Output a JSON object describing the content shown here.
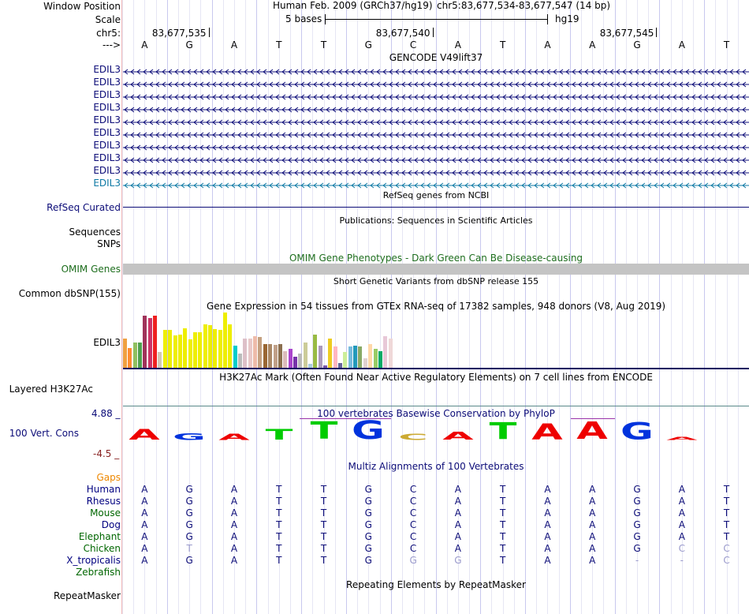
{
  "header": {
    "window_position_label": "Window Position",
    "assembly": "Human Feb. 2009 (GRCh37/hg19)",
    "position": "chr5:83,677,534-83,677,547 (14 bp)",
    "scale_label": "Scale",
    "scale_text": "5 bases",
    "scale_db": "hg19",
    "chrom_label": "chr5:",
    "strand_label": "--->",
    "ruler_ticks": [
      "83,677,535",
      "83,677,540",
      "83,677,545"
    ]
  },
  "sequence": [
    "A",
    "G",
    "A",
    "T",
    "T",
    "G",
    "C",
    "A",
    "T",
    "A",
    "A",
    "G",
    "A",
    "T"
  ],
  "gencode": {
    "title": "GENCODE V49lift37",
    "genes": [
      "EDIL3",
      "EDIL3",
      "EDIL3",
      "EDIL3",
      "EDIL3",
      "EDIL3",
      "EDIL3",
      "EDIL3",
      "EDIL3",
      "EDIL3"
    ],
    "gene_color": "#0c0c78",
    "last_gene_color": "#0f7aa5"
  },
  "refseq": {
    "title": "RefSeq genes from NCBI",
    "label": "RefSeq Curated"
  },
  "publications": {
    "title": "Publications: Sequences in Scientific Articles",
    "labels": [
      "Sequences",
      "SNPs"
    ]
  },
  "omim": {
    "title": "OMIM Gene Phenotypes - Dark Green Can Be Disease-causing",
    "label": "OMIM Genes",
    "color": "#1e6e1e"
  },
  "dbsnp": {
    "title": "Short Genetic Variants from dbSNP release 155",
    "label": "Common dbSNP(155)"
  },
  "gtex": {
    "title": "Gene Expression in 54 tissues from GTEx RNA-seq of 17382 samples, 948 donors (V8, Aug 2019)",
    "label": "EDIL3",
    "bars": [
      {
        "v": 0.53,
        "c": "#f0a040"
      },
      {
        "v": 0.35,
        "c": "#ff8c30"
      },
      {
        "v": 0.45,
        "c": "#90c060"
      },
      {
        "v": 0.45,
        "c": "#50a050"
      },
      {
        "v": 0.94,
        "c": "#a0325a"
      },
      {
        "v": 0.9,
        "c": "#cc3366"
      },
      {
        "v": 0.94,
        "c": "#ee2020"
      },
      {
        "v": 0.28,
        "c": "#d2c8b4"
      },
      {
        "v": 0.68,
        "c": "#eeee00"
      },
      {
        "v": 0.68,
        "c": "#eeee00"
      },
      {
        "v": 0.58,
        "c": "#eeee00"
      },
      {
        "v": 0.6,
        "c": "#eeee00"
      },
      {
        "v": 0.72,
        "c": "#eeee00"
      },
      {
        "v": 0.51,
        "c": "#eeee00"
      },
      {
        "v": 0.64,
        "c": "#eeee00"
      },
      {
        "v": 0.64,
        "c": "#eeee00"
      },
      {
        "v": 0.79,
        "c": "#eeee00"
      },
      {
        "v": 0.77,
        "c": "#eeee00"
      },
      {
        "v": 0.7,
        "c": "#eeee00"
      },
      {
        "v": 0.68,
        "c": "#eeee00"
      },
      {
        "v": 1.0,
        "c": "#eeee00"
      },
      {
        "v": 0.79,
        "c": "#eeee00"
      },
      {
        "v": 0.4,
        "c": "#00cccc"
      },
      {
        "v": 0.26,
        "c": "#bbbbbb"
      },
      {
        "v": 0.53,
        "c": "#ddc0c8"
      },
      {
        "v": 0.53,
        "c": "#e8c8c8"
      },
      {
        "v": 0.57,
        "c": "#eebbaa"
      },
      {
        "v": 0.55,
        "c": "#c4a080"
      },
      {
        "v": 0.43,
        "c": "#996633"
      },
      {
        "v": 0.43,
        "c": "#aa8866"
      },
      {
        "v": 0.41,
        "c": "#c0a088"
      },
      {
        "v": 0.43,
        "c": "#8b6f4e"
      },
      {
        "v": 0.3,
        "c": "#dbbbbb"
      },
      {
        "v": 0.34,
        "c": "#aa44cc"
      },
      {
        "v": 0.2,
        "c": "#7733aa"
      },
      {
        "v": 0.26,
        "c": "#bbbbbb"
      },
      {
        "v": 0.45,
        "c": "#cccc99"
      },
      {
        "v": 0.07,
        "c": "#aaccdd"
      },
      {
        "v": 0.6,
        "c": "#99bb44"
      },
      {
        "v": 0.4,
        "c": "#aa99bb"
      },
      {
        "v": 0.04,
        "c": "#7755aa"
      },
      {
        "v": 0.53,
        "c": "#eecc22"
      },
      {
        "v": 0.38,
        "c": "#ffb6c1"
      },
      {
        "v": 0.09,
        "c": "#666699"
      },
      {
        "v": 0.28,
        "c": "#ccee99"
      },
      {
        "v": 0.38,
        "c": "#77bbdd"
      },
      {
        "v": 0.4,
        "c": "#2299bb"
      },
      {
        "v": 0.38,
        "c": "#88aa66"
      },
      {
        "v": 0.17,
        "c": "#e0d0d0"
      },
      {
        "v": 0.43,
        "c": "#ffd8a8"
      },
      {
        "v": 0.34,
        "c": "#99cc66"
      },
      {
        "v": 0.3,
        "c": "#00aa66"
      },
      {
        "v": 0.57,
        "c": "#e8c8d8"
      },
      {
        "v": 0.53,
        "c": "#efd8d8"
      }
    ]
  },
  "h3k27ac": {
    "title": "H3K27Ac Mark (Often Found Near Active Regulatory Elements) on 7 cell lines from ENCODE",
    "label": "Layered H3K27Ac"
  },
  "phylop": {
    "title": "100 vertebrates Basewise Conservation by PhyloP",
    "label": "100 Vert. Cons",
    "max": "4.88 _",
    "min": "-4.5 _",
    "scores": [
      0.55,
      0.35,
      0.3,
      0.55,
      0.9,
      0.95,
      0.3,
      0.4,
      0.85,
      0.8,
      0.9,
      0.85,
      0.15,
      0.0
    ],
    "colors": {
      "A": "#ee0000",
      "G": "#0033dd",
      "T": "#00cc00",
      "C": "#ccaa33"
    }
  },
  "multiz": {
    "title": "Multiz Alignments of 100 Vertebrates",
    "gaps_label": "Gaps",
    "gaps_color": "#ee8800",
    "species": [
      {
        "name": "Human",
        "color": "#000080",
        "seq": [
          "A",
          "G",
          "A",
          "T",
          "T",
          "G",
          "C",
          "A",
          "T",
          "A",
          "A",
          "G",
          "A",
          "T"
        ],
        "dim": []
      },
      {
        "name": "Rhesus",
        "color": "#000080",
        "seq": [
          "A",
          "G",
          "A",
          "T",
          "T",
          "G",
          "C",
          "A",
          "T",
          "A",
          "A",
          "G",
          "A",
          "T"
        ],
        "dim": []
      },
      {
        "name": "Mouse",
        "color": "#006600",
        "seq": [
          "A",
          "G",
          "A",
          "T",
          "T",
          "G",
          "C",
          "A",
          "T",
          "A",
          "A",
          "G",
          "A",
          "T"
        ],
        "dim": []
      },
      {
        "name": "Dog",
        "color": "#000080",
        "seq": [
          "A",
          "G",
          "A",
          "T",
          "T",
          "G",
          "C",
          "A",
          "T",
          "A",
          "A",
          "G",
          "A",
          "T"
        ],
        "dim": []
      },
      {
        "name": "Elephant",
        "color": "#006600",
        "seq": [
          "A",
          "G",
          "A",
          "T",
          "T",
          "G",
          "C",
          "A",
          "T",
          "A",
          "A",
          "G",
          "A",
          "T"
        ],
        "dim": []
      },
      {
        "name": "Chicken",
        "color": "#006600",
        "seq": [
          "A",
          "T",
          "A",
          "T",
          "T",
          "G",
          "C",
          "A",
          "T",
          "A",
          "A",
          "G",
          "C",
          "C"
        ],
        "dim": [
          1,
          12,
          13
        ]
      },
      {
        "name": "X_tropicalis",
        "color": "#000080",
        "seq": [
          "A",
          "G",
          "A",
          "T",
          "T",
          "G",
          "G",
          "G",
          "T",
          "A",
          "A",
          "-",
          "-",
          "C"
        ],
        "dim": [
          6,
          7,
          11,
          12,
          13
        ]
      },
      {
        "name": "Zebrafish",
        "color": "#006600",
        "seq": [
          "",
          "",
          "",
          "",
          "",
          "",
          "",
          "",
          "",
          "",
          "",
          "",
          "",
          ""
        ],
        "dim": []
      }
    ]
  },
  "repeatmasker": {
    "title": "Repeating Elements by RepeatMasker",
    "label": "RepeatMasker"
  }
}
